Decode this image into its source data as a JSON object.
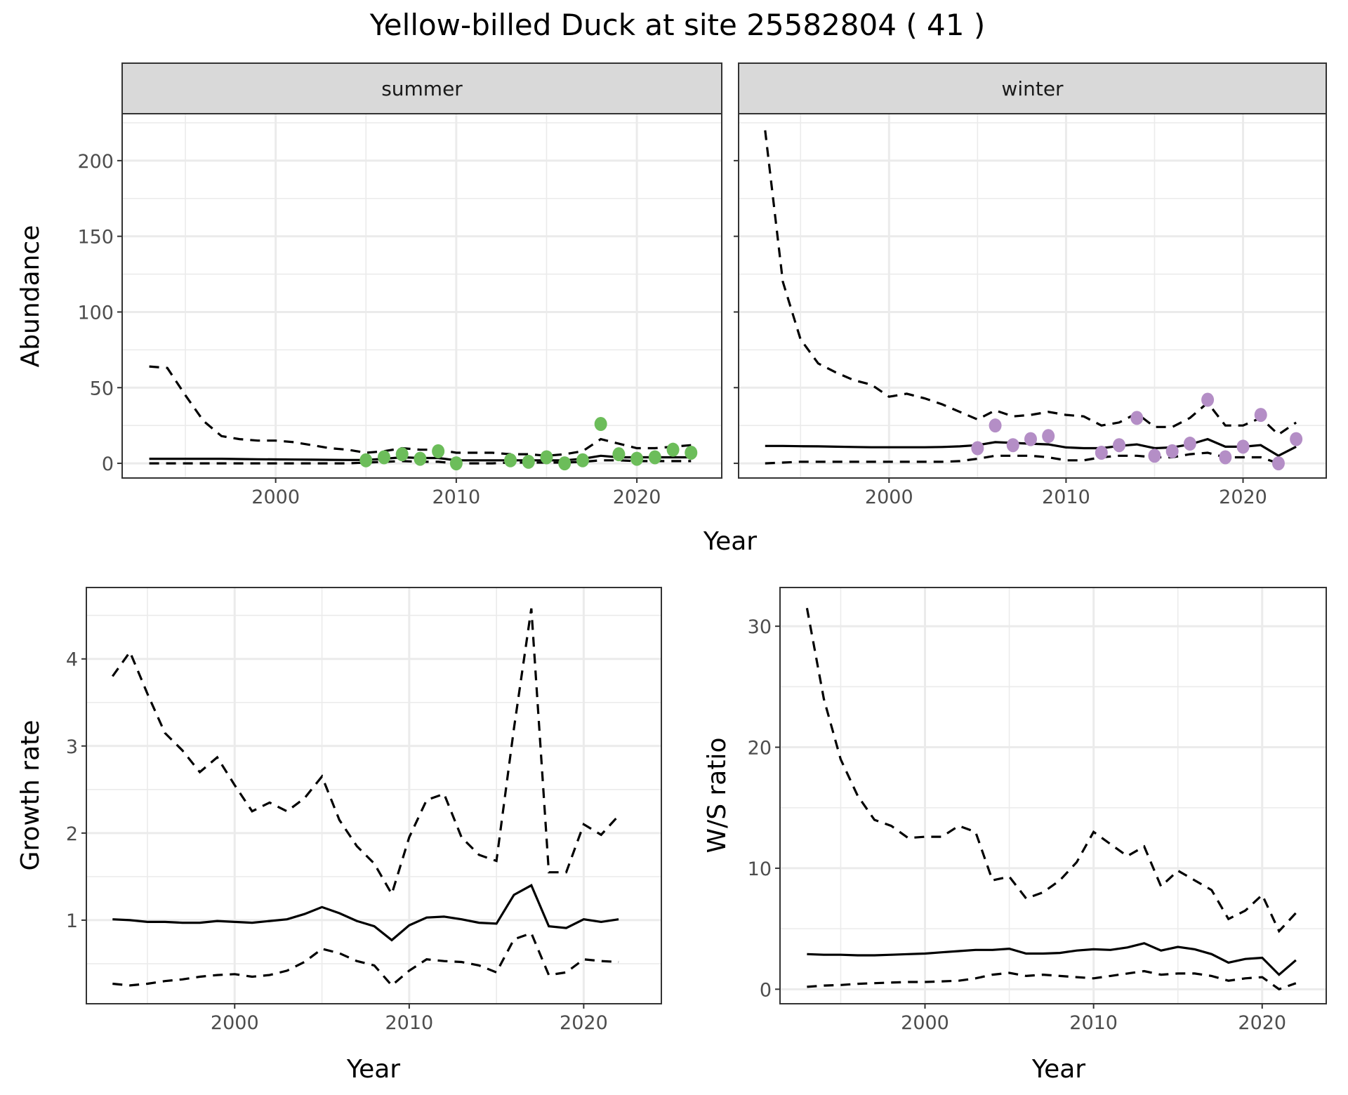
{
  "title": "Yellow-billed Duck at site 25582804 ( 41 )",
  "colors": {
    "summer_points": "#6cbd5a",
    "winter_points": "#b48ec6",
    "line": "#000000",
    "grid": "#ebebeb",
    "strip": "#d9d9d9"
  },
  "chart_data": [
    {
      "type": "line",
      "name": "abundance",
      "ylabel": "Abundance",
      "xlabel": "Year",
      "xlim": [
        1991.5,
        2024.7
      ],
      "ylim": [
        -9.7,
        231
      ],
      "xticks": [
        2000,
        2010,
        2020
      ],
      "yticks": [
        0,
        50,
        100,
        150,
        200
      ],
      "xtick_labels": [
        "2000",
        "2010",
        "2020"
      ],
      "ytick_labels": [
        "0",
        "50",
        "100",
        "150",
        "200"
      ],
      "grid": true,
      "facets": [
        {
          "label": "summer",
          "x": [
            1993,
            1994,
            1995,
            1996,
            1997,
            1998,
            1999,
            2000,
            2001,
            2002,
            2003,
            2004,
            2005,
            2006,
            2007,
            2008,
            2009,
            2010,
            2011,
            2012,
            2013,
            2014,
            2015,
            2016,
            2017,
            2018,
            2019,
            2020,
            2021,
            2022,
            2023
          ],
          "mean": [
            3,
            3,
            3,
            3,
            3,
            2.8,
            2.7,
            2.6,
            2.5,
            2.4,
            2.3,
            2.2,
            2.2,
            3,
            4,
            3.5,
            3.5,
            2,
            2,
            2,
            2,
            2,
            2,
            2,
            3,
            5,
            4,
            4,
            4,
            4,
            4
          ],
          "upper": [
            64,
            63,
            45,
            28,
            18,
            16,
            15,
            15,
            14,
            12,
            10,
            9,
            7,
            8,
            10,
            9,
            9,
            7,
            7,
            7,
            6,
            6,
            5,
            6,
            8,
            16,
            13,
            10,
            10,
            11,
            12
          ],
          "lower": [
            0,
            0,
            0,
            0,
            0,
            0,
            0,
            0,
            0,
            0,
            0,
            0,
            0.5,
            1,
            1.5,
            1,
            1,
            0,
            0,
            0,
            0.5,
            0.5,
            0.5,
            0.5,
            1,
            2,
            2,
            1.5,
            1.5,
            1.5,
            1.5
          ],
          "points": {
            "x": [
              2005,
              2006,
              2007,
              2008,
              2009,
              2010,
              2013,
              2014,
              2015,
              2016,
              2017,
              2018,
              2019,
              2020,
              2021,
              2022,
              2023
            ],
            "y": [
              2,
              4,
              6,
              3,
              8,
              0,
              2,
              1,
              4,
              0,
              2,
              26,
              6,
              3,
              4,
              9,
              7
            ]
          }
        },
        {
          "label": "winter",
          "x": [
            1993,
            1994,
            1995,
            1996,
            1997,
            1998,
            1999,
            2000,
            2001,
            2002,
            2003,
            2004,
            2005,
            2006,
            2007,
            2008,
            2009,
            2010,
            2011,
            2012,
            2013,
            2014,
            2015,
            2016,
            2017,
            2018,
            2019,
            2020,
            2021,
            2022,
            2023
          ],
          "mean": [
            11.5,
            11.5,
            11.3,
            11.2,
            11,
            10.8,
            10.6,
            10.6,
            10.6,
            10.6,
            10.8,
            11.2,
            12,
            14,
            13.5,
            13,
            12.5,
            10.5,
            10,
            10,
            11.5,
            12.5,
            10,
            10.5,
            12.5,
            16,
            11,
            11,
            12,
            5,
            11
          ],
          "upper": [
            220,
            120,
            82,
            66,
            60,
            55,
            52,
            44,
            46,
            43,
            39,
            34,
            29,
            35,
            31,
            32,
            34,
            32,
            31,
            25,
            27,
            33,
            24,
            24,
            30,
            40,
            25,
            25,
            30,
            19,
            27
          ],
          "lower": [
            0,
            0.5,
            1,
            1,
            1,
            1,
            1,
            1,
            1,
            1,
            1,
            1.5,
            3,
            5,
            5,
            5,
            4,
            2,
            2,
            4,
            5,
            5,
            4,
            4,
            6,
            7,
            4,
            4,
            4,
            0,
            null
          ],
          "points": {
            "x": [
              2005,
              2006,
              2007,
              2008,
              2009,
              2012,
              2013,
              2014,
              2015,
              2016,
              2017,
              2018,
              2019,
              2020,
              2021,
              2022,
              2023
            ],
            "y": [
              10,
              25,
              12,
              16,
              18,
              7,
              12,
              30,
              5,
              8,
              13,
              42,
              4,
              11,
              32,
              0,
              16
            ]
          }
        }
      ]
    },
    {
      "type": "line",
      "name": "growth-rate",
      "ylabel": "Growth rate",
      "xlabel": "Year",
      "xlim": [
        1991.5,
        2024.45
      ],
      "ylim": [
        0.04,
        4.82
      ],
      "xticks": [
        2000,
        2010,
        2020
      ],
      "yticks": [
        1,
        2,
        3,
        4
      ],
      "xtick_labels": [
        "2000",
        "2010",
        "2020"
      ],
      "ytick_labels": [
        "1",
        "2",
        "3",
        "4"
      ],
      "grid": true,
      "x": [
        1993,
        1994,
        1995,
        1996,
        1997,
        1998,
        1999,
        2000,
        2001,
        2002,
        2003,
        2004,
        2005,
        2006,
        2007,
        2008,
        2009,
        2010,
        2011,
        2012,
        2013,
        2014,
        2015,
        2016,
        2017,
        2018,
        2019,
        2020,
        2021,
        2022
      ],
      "mean": [
        1.01,
        1.0,
        0.98,
        0.98,
        0.97,
        0.97,
        0.99,
        0.98,
        0.97,
        0.99,
        1.01,
        1.07,
        1.15,
        1.08,
        0.99,
        0.93,
        0.77,
        0.94,
        1.03,
        1.04,
        1.01,
        0.97,
        0.96,
        1.29,
        1.4,
        0.93,
        0.91,
        1.01,
        0.98,
        1.01
      ],
      "upper": [
        3.8,
        4.08,
        3.6,
        3.15,
        2.95,
        2.7,
        2.87,
        2.55,
        2.25,
        2.35,
        2.25,
        2.4,
        2.65,
        2.15,
        1.85,
        1.65,
        1.3,
        1.95,
        2.38,
        2.45,
        1.95,
        1.75,
        1.68,
        3.2,
        4.58,
        1.55,
        1.55,
        2.1,
        1.98,
        2.2
      ],
      "lower": [
        0.27,
        0.25,
        0.27,
        0.3,
        0.32,
        0.35,
        0.37,
        0.38,
        0.35,
        0.37,
        0.42,
        0.52,
        0.67,
        0.62,
        0.53,
        0.48,
        0.25,
        0.42,
        0.55,
        0.53,
        0.52,
        0.48,
        0.4,
        0.78,
        0.85,
        0.37,
        0.4,
        0.55,
        0.53,
        0.52
      ]
    },
    {
      "type": "line",
      "name": "ws-ratio",
      "ylabel": "W/S ratio",
      "xlabel": "Year",
      "xlim": [
        1991.4,
        2023.8
      ],
      "ylim": [
        -1.2,
        33.2
      ],
      "xticks": [
        2000,
        2010,
        2020
      ],
      "yticks": [
        0,
        10,
        20,
        30
      ],
      "xtick_labels": [
        "2000",
        "2010",
        "2020"
      ],
      "ytick_labels": [
        "0",
        "10",
        "20",
        "30"
      ],
      "grid": true,
      "x": [
        1993,
        1994,
        1995,
        1996,
        1997,
        1998,
        1999,
        2000,
        2001,
        2002,
        2003,
        2004,
        2005,
        2006,
        2007,
        2008,
        2009,
        2010,
        2011,
        2012,
        2013,
        2014,
        2015,
        2016,
        2017,
        2018,
        2019,
        2020,
        2021,
        2022
      ],
      "mean": [
        2.9,
        2.85,
        2.85,
        2.8,
        2.8,
        2.85,
        2.9,
        2.95,
        3.05,
        3.15,
        3.25,
        3.25,
        3.35,
        2.95,
        2.95,
        3.0,
        3.2,
        3.3,
        3.25,
        3.45,
        3.8,
        3.2,
        3.5,
        3.3,
        2.9,
        2.2,
        2.5,
        2.6,
        1.2,
        2.4
      ],
      "upper": [
        31.5,
        24,
        19,
        16,
        14,
        13.5,
        12.5,
        12.6,
        12.6,
        13.5,
        13,
        9,
        9.3,
        7.5,
        8,
        9,
        10.5,
        13,
        12,
        11,
        11.8,
        8.5,
        9.8,
        9,
        8.2,
        5.8,
        6.5,
        7.8,
        4.8,
        6.3
      ],
      "lower": [
        0.2,
        0.3,
        0.35,
        0.45,
        0.5,
        0.55,
        0.6,
        0.6,
        0.65,
        0.7,
        0.9,
        1.2,
        1.35,
        1.1,
        1.2,
        1.1,
        1.0,
        0.9,
        1.1,
        1.3,
        1.5,
        1.2,
        1.3,
        1.3,
        1.1,
        0.7,
        0.9,
        1.0,
        0,
        0.5
      ]
    }
  ]
}
